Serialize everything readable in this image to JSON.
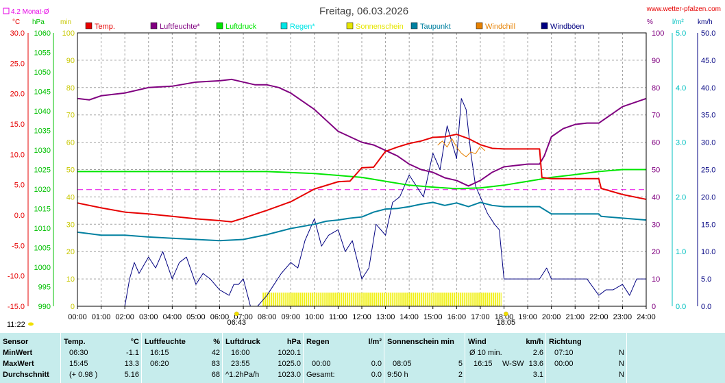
{
  "header": {
    "title": "Freitag, 06.03.2026",
    "site": "www.wetter-pfalzen.com",
    "month_avg_label": "4.2 Monat-Ø"
  },
  "units": {
    "temp": "°C",
    "pressure": "hPa",
    "minutes": "min",
    "percent": "%",
    "rain": "l/m²",
    "wind": "km/h"
  },
  "legend": [
    {
      "name": "Temp.",
      "color": "#e60000"
    },
    {
      "name": "Luftfeuchte*",
      "color": "#800080"
    },
    {
      "name": "Luftdruck",
      "color": "#00e600"
    },
    {
      "name": "Regen*",
      "color": "#00e6e6"
    },
    {
      "name": "Sonnenschein",
      "color": "#e6e600"
    },
    {
      "name": "Taupunkt",
      "color": "#0080a0"
    },
    {
      "name": "Windchill",
      "color": "#e68000"
    },
    {
      "name": "Windböen",
      "color": "#000080"
    }
  ],
  "chart_data": {
    "type": "line",
    "x_ticks": [
      "00:00",
      "01:00",
      "02:00",
      "03:00",
      "04:00",
      "05:00",
      "06:00",
      "07:00",
      "08:00",
      "09:00",
      "10:00",
      "11:00",
      "12:00",
      "13:00",
      "14:00",
      "15:00",
      "16:00",
      "17:00",
      "18:00",
      "19:00",
      "20:00",
      "21:00",
      "22:00",
      "23:00",
      "24:00"
    ],
    "axes": {
      "temp": {
        "unit": "°C",
        "range": [
          -15,
          30
        ],
        "ticks": [
          "30.0",
          "25.0",
          "20.0",
          "15.0",
          "10.0",
          "5.0",
          "0.0",
          "-5.0",
          "-10.0",
          "-15.0"
        ]
      },
      "pressure": {
        "unit": "hPa",
        "range": [
          990,
          1060
        ],
        "ticks": [
          "1060",
          "1055",
          "1050",
          "1045",
          "1040",
          "1035",
          "1030",
          "1025",
          "1020",
          "1015",
          "1010",
          "1005",
          "1000",
          "995",
          "990"
        ]
      },
      "minutes": {
        "unit": "min",
        "range": [
          0,
          100
        ],
        "ticks": [
          "100",
          "90",
          "80",
          "70",
          "60",
          "50",
          "40",
          "30",
          "20",
          "10",
          "0"
        ]
      },
      "humidity": {
        "unit": "%",
        "range": [
          0,
          100
        ],
        "ticks": [
          "100",
          "90",
          "80",
          "70",
          "60",
          "50",
          "40",
          "30",
          "20",
          "10",
          "0"
        ]
      },
      "rain": {
        "unit": "l/m²",
        "range": [
          0,
          5
        ],
        "ticks": [
          "5.0",
          "4.0",
          "3.0",
          "2.0",
          "1.0",
          "0.0"
        ]
      },
      "wind": {
        "unit": "km/h",
        "range": [
          0,
          50
        ],
        "ticks": [
          "50.0",
          "45.0",
          "40.0",
          "35.0",
          "30.0",
          "25.0",
          "20.0",
          "15.0",
          "10.0",
          "5.0",
          "0.0"
        ]
      }
    },
    "grid": true,
    "reference_line": {
      "name": "4.2 Monat-Ø",
      "value": 4.2,
      "axis": "temp"
    },
    "sunrise": "06:43",
    "sunset": "18:05",
    "moon_time": "11:22",
    "series": [
      {
        "name": "Temp.",
        "axis": "temp",
        "x": [
          0,
          1,
          2,
          3,
          4,
          5,
          6,
          6.5,
          7,
          8,
          9,
          10,
          11,
          11.5,
          12,
          12.5,
          13,
          13.5,
          14,
          14.5,
          15,
          15.5,
          16,
          16.5,
          17,
          17.5,
          18,
          18.5,
          19,
          19.5,
          19.6,
          20,
          21,
          22,
          22.1,
          23,
          24
        ],
        "y": [
          2,
          1.2,
          0.5,
          0.2,
          -0.2,
          -0.6,
          -0.9,
          -1.1,
          -0.5,
          0.8,
          2.2,
          4.3,
          5.5,
          5.6,
          7.8,
          7.9,
          10.5,
          11.2,
          11.8,
          12.2,
          12.8,
          12.9,
          13.3,
          12.6,
          11.6,
          11,
          10.9,
          10.9,
          10.9,
          10.9,
          6.2,
          6,
          6,
          6,
          4.4,
          3.4,
          2.6
        ]
      },
      {
        "name": "Luftfeuchte*",
        "axis": "humidity",
        "x": [
          0,
          0.5,
          1,
          2,
          3,
          4,
          5,
          6,
          6.5,
          7,
          7.5,
          8,
          8.5,
          9,
          10,
          10.5,
          11,
          11.5,
          12,
          12.5,
          13,
          13.5,
          14,
          14.5,
          15,
          15.5,
          16,
          16.5,
          17,
          17.5,
          18,
          18.5,
          19,
          19.5,
          19.7,
          20,
          20.5,
          21,
          21.5,
          22,
          23,
          24
        ],
        "y": [
          76,
          75.5,
          77,
          78,
          80,
          80.5,
          82,
          82.5,
          83,
          82,
          81,
          81,
          80,
          78,
          72,
          68,
          64,
          62,
          60,
          59,
          57,
          55,
          52,
          50,
          49,
          47,
          46,
          44,
          46,
          49,
          51,
          51.5,
          52,
          52,
          55,
          62,
          65,
          66.5,
          67,
          67,
          73,
          76
        ]
      },
      {
        "name": "Luftdruck",
        "axis": "pressure",
        "x": [
          0,
          2,
          4,
          6,
          8,
          10,
          11,
          12,
          13,
          14,
          15,
          16,
          17,
          18,
          19,
          20,
          21,
          22,
          23,
          24
        ],
        "y": [
          1024.5,
          1024.5,
          1024.5,
          1024.5,
          1024.5,
          1024,
          1023.5,
          1023,
          1022,
          1021,
          1020.5,
          1020.1,
          1020.3,
          1021,
          1022,
          1023,
          1023.7,
          1024.5,
          1025,
          1025
        ]
      },
      {
        "name": "Regen*",
        "axis": "rain",
        "x": [
          0,
          24
        ],
        "y": [
          0,
          0
        ]
      },
      {
        "name": "Taupunkt",
        "axis": "temp",
        "x": [
          0,
          1,
          2,
          3,
          4,
          5,
          6,
          7,
          8,
          9,
          10,
          10.5,
          11,
          11.5,
          12,
          12.5,
          13,
          13.5,
          14,
          14.5,
          15,
          15.5,
          16,
          16.5,
          17,
          17.5,
          18,
          18.5,
          19,
          19.5,
          20,
          21,
          22,
          22.1,
          23,
          24
        ],
        "y": [
          -2.8,
          -3.3,
          -3.3,
          -3.6,
          -3.8,
          -4,
          -4.2,
          -4,
          -3.2,
          -2.2,
          -1.5,
          -1,
          -0.8,
          -0.5,
          -0.3,
          0.5,
          1,
          1.1,
          1.4,
          1.8,
          2.1,
          1.6,
          2,
          1.4,
          2.1,
          1.6,
          1.4,
          1.4,
          1.4,
          1.4,
          0.2,
          0.2,
          0.2,
          -0.2,
          -0.5,
          -0.8
        ]
      },
      {
        "name": "Windchill",
        "axis": "temp",
        "x": [
          15.2,
          15.4,
          15.6,
          15.8,
          16,
          16.2,
          16.4,
          16.6,
          16.8,
          17,
          17.2
        ],
        "y": [
          11.5,
          12.2,
          11.2,
          12.6,
          11.2,
          10.2,
          9.6,
          10.4,
          10.1,
          11.3,
          10.6
        ]
      },
      {
        "name": "Windböen",
        "axis": "wind",
        "x": [
          0,
          0.2,
          0.3,
          1.8,
          2,
          2.2,
          2.4,
          2.6,
          3,
          3.3,
          3.6,
          4,
          4.3,
          4.6,
          5,
          5.3,
          5.6,
          6,
          6.4,
          6.6,
          6.8,
          7,
          7.3,
          7.6,
          8,
          8.3,
          8.6,
          9,
          9.3,
          9.6,
          10,
          10.3,
          10.6,
          11,
          11.3,
          11.6,
          12,
          12.3,
          12.6,
          13,
          13.3,
          13.6,
          14,
          14.3,
          14.6,
          15,
          15.3,
          15.6,
          16,
          16.2,
          16.4,
          16.6,
          16.8,
          17,
          17.3,
          17.6,
          17.8,
          18,
          18.5,
          19,
          19.5,
          19.8,
          20,
          20.5,
          21,
          21.5,
          22,
          22.3,
          22.6,
          23,
          23.3,
          23.6,
          24
        ],
        "y": [
          0,
          0,
          0,
          0,
          0,
          5,
          8,
          6,
          9,
          7,
          10,
          5,
          8,
          9,
          4,
          6,
          5,
          3,
          2,
          4,
          4,
          5,
          0,
          0,
          2,
          4,
          6,
          8,
          7,
          12,
          16,
          11,
          13,
          14,
          10,
          12,
          5,
          7,
          15,
          13,
          19,
          20,
          24,
          22,
          20,
          28,
          25,
          33,
          27,
          38,
          36,
          28,
          22,
          20,
          17,
          15,
          14,
          5,
          5,
          5,
          5,
          7,
          5,
          5,
          5,
          5,
          2,
          3,
          3,
          4,
          2,
          5,
          5
        ]
      },
      {
        "name": "Sonnenschein",
        "axis": "minutes",
        "x": [
          7.8,
          8,
          8.3,
          8.6,
          9,
          9.5,
          10,
          11,
          12,
          13,
          14,
          15,
          16,
          17,
          17.9
        ],
        "y": [
          5,
          5,
          5,
          5,
          5,
          5,
          5,
          5,
          5,
          5,
          5,
          5,
          5,
          5,
          5
        ]
      }
    ]
  },
  "table": {
    "headers": {
      "sensor": "Sensor",
      "temp": "Temp.",
      "temp_unit": "°C",
      "hum": "Luftfeuchte",
      "hum_unit": "%",
      "press": "Luftdruck",
      "press_unit": "hPa",
      "rain": "Regen",
      "rain_unit": "l/m²",
      "sun": "Sonnenschein min",
      "wind": "Wind",
      "wind_unit": "km/h",
      "dir": "Richtung"
    },
    "rows": [
      {
        "label": "MinWert",
        "temp_time": "06:30",
        "temp_val": "-1.1",
        "hum_time": "16:15",
        "hum_val": "42",
        "press_time": "16:00",
        "press_val": "1020.1",
        "rain_time": "",
        "rain_val": "",
        "sun_time": "",
        "sun_val": "",
        "wind_time": "Ø 10 min.",
        "wind_dir": "",
        "wind_val": "2.6",
        "dir_time": "07:10",
        "dir_val": "N"
      },
      {
        "label": "MaxWert",
        "temp_time": "15:45",
        "temp_val": "13.3",
        "hum_time": "06:20",
        "hum_val": "83",
        "press_time": "23:55",
        "press_val": "1025.0",
        "rain_time": "00:00",
        "rain_val": "0.0",
        "sun_time": "08:05",
        "sun_val": "5",
        "wind_time": "16:15",
        "wind_dir": "W-SW",
        "wind_val": "13.6",
        "dir_time": "00:00",
        "dir_val": "N"
      },
      {
        "label": "Durchschnitt",
        "temp_time": "(+ 0.98 )",
        "temp_val": "5.16",
        "hum_time": "",
        "hum_val": "68",
        "press_time": "^1.2hPa/h",
        "press_val": "1023.0",
        "rain_time": "Gesamt:",
        "rain_val": "0.0",
        "sun_time": "9:50 h",
        "sun_val": "2",
        "wind_time": "",
        "wind_dir": "",
        "wind_val": "3.1",
        "dir_time": "",
        "dir_val": "N"
      }
    ]
  }
}
